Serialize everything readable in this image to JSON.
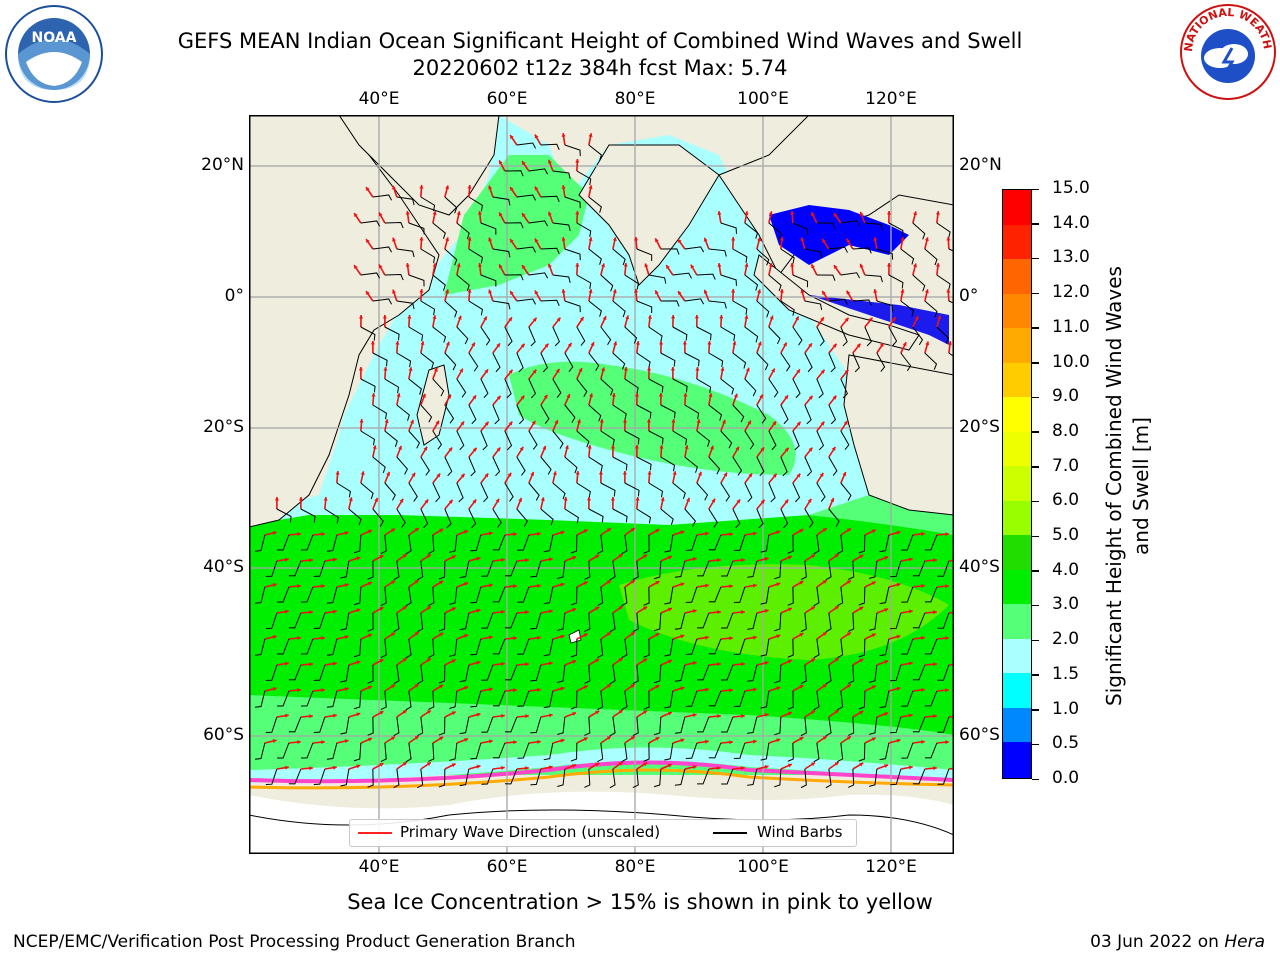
{
  "header": {
    "title_line1": "GEFS MEAN Indian Ocean Significant Height of Combined Wind Waves and Swell",
    "title_line2": "20220602 t12z 384h fcst   Max: 5.74"
  },
  "logos": {
    "left": "NOAA",
    "right": "NATIONAL WEATHER SERVICE"
  },
  "map": {
    "lon_labels": [
      "40°E",
      "60°E",
      "80°E",
      "100°E",
      "120°E"
    ],
    "lat_labels": [
      "20°N",
      "0°",
      "20°S",
      "40°S",
      "60°S"
    ],
    "legend": {
      "wave_direction": "Primary Wave Direction (unscaled)",
      "wind_barbs": "Wind Barbs"
    }
  },
  "colorbar": {
    "label": "Significant Height of Combined Wind Waves and Swell [m]",
    "ticks": [
      "15.0",
      "14.0",
      "13.0",
      "12.0",
      "11.0",
      "10.0",
      "9.0",
      "8.0",
      "7.0",
      "6.0",
      "5.0",
      "4.0",
      "3.0",
      "2.0",
      "1.5",
      "1.0",
      "0.5",
      "0.0"
    ],
    "colors_top_to_bottom": [
      "#ff0000",
      "#ff2200",
      "#ff4400",
      "#ff6600",
      "#ff8800",
      "#ffaa00",
      "#ffcc00",
      "#ffee00",
      "#ffff00",
      "#eeff00",
      "#ccff00",
      "#99ff00",
      "#66ee00",
      "#22dd00",
      "#00ee00",
      "#55ff77",
      "#aaffff",
      "#55ffff",
      "#00ffff",
      "#0088ff",
      "#0000ff"
    ]
  },
  "footer": {
    "caption": "Sea Ice Concentration > 15% is shown in pink to yellow",
    "left": "NCEP/EMC/Verification Post Processing Product Generation Branch",
    "right_prefix": "03 Jun 2022 on ",
    "right_italic": "Hera"
  }
}
